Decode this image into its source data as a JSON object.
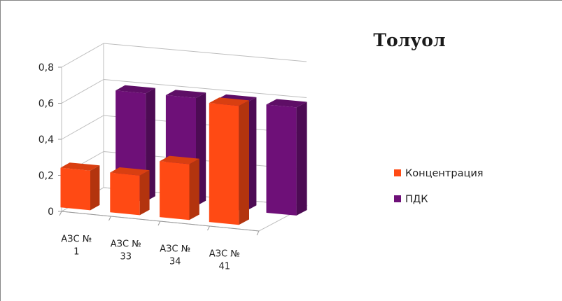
{
  "chart_data": {
    "type": "bar",
    "title": "Толуол",
    "categories": [
      [
        "АЗС №",
        "1"
      ],
      [
        "АЗС №",
        "33"
      ],
      [
        "АЗС №",
        "34"
      ],
      [
        "АЗС №",
        "41"
      ]
    ],
    "series": [
      {
        "name": "Концентрация",
        "values": [
          0.22,
          0.22,
          0.31,
          0.66
        ],
        "color": "#ff4a14"
      },
      {
        "name": "ПДК",
        "values": [
          0.6,
          0.6,
          0.6,
          0.6
        ],
        "color": "#6e1078"
      }
    ],
    "yticks": [
      "0",
      "0,2",
      "0,4",
      "0,6",
      "0,8"
    ],
    "ylim": [
      0,
      0.8
    ],
    "grid": true,
    "legend": "right",
    "style": "3d-clustered-column"
  }
}
